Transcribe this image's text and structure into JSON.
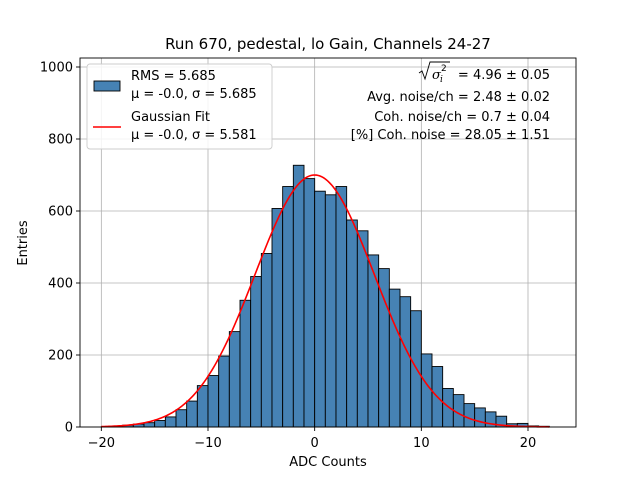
{
  "chart_data": {
    "type": "bar",
    "title": "Run 670, pedestal, lo Gain, Channels 24-27",
    "xlabel": "ADC Counts",
    "ylabel": "Entries",
    "xlim": [
      -22,
      24.5
    ],
    "ylim": [
      0,
      1025
    ],
    "xticks": [
      -20,
      -10,
      0,
      10,
      20
    ],
    "yticks": [
      0,
      200,
      400,
      600,
      800,
      1000
    ],
    "grid": true,
    "bin_edges_start": -20,
    "bin_width": 1,
    "counts": [
      1,
      3,
      5,
      8,
      12,
      18,
      28,
      48,
      72,
      115,
      143,
      197,
      265,
      352,
      418,
      482,
      607,
      668,
      727,
      690,
      655,
      645,
      668,
      575,
      545,
      478,
      440,
      383,
      362,
      323,
      203,
      168,
      107,
      90,
      65,
      53,
      42,
      30,
      9,
      10,
      3,
      2
    ],
    "histogram": {
      "name": "RMS = 5.685",
      "line2": "μ = -0.0, σ = 5.685",
      "color": "#4682b4",
      "edgecolor": "#000000"
    },
    "fit": {
      "name": "Gaussian Fit",
      "line2": "μ = -0.0, σ = 5.581",
      "mu": 0.0,
      "sigma": 5.581,
      "amplitude": 700,
      "color": "#ff0000",
      "x_range": [
        -20,
        22
      ]
    },
    "legend_position": "upper-left",
    "annotations": {
      "sigma_label": "= 4.96 ± 0.05",
      "avg_noise": "Avg. noise/ch = 2.48 ± 0.02",
      "coh_noise": "Coh. noise/ch = 0.7 ± 0.04",
      "coh_pct": "[%] Coh. noise = 28.05 ± 1.51"
    }
  }
}
